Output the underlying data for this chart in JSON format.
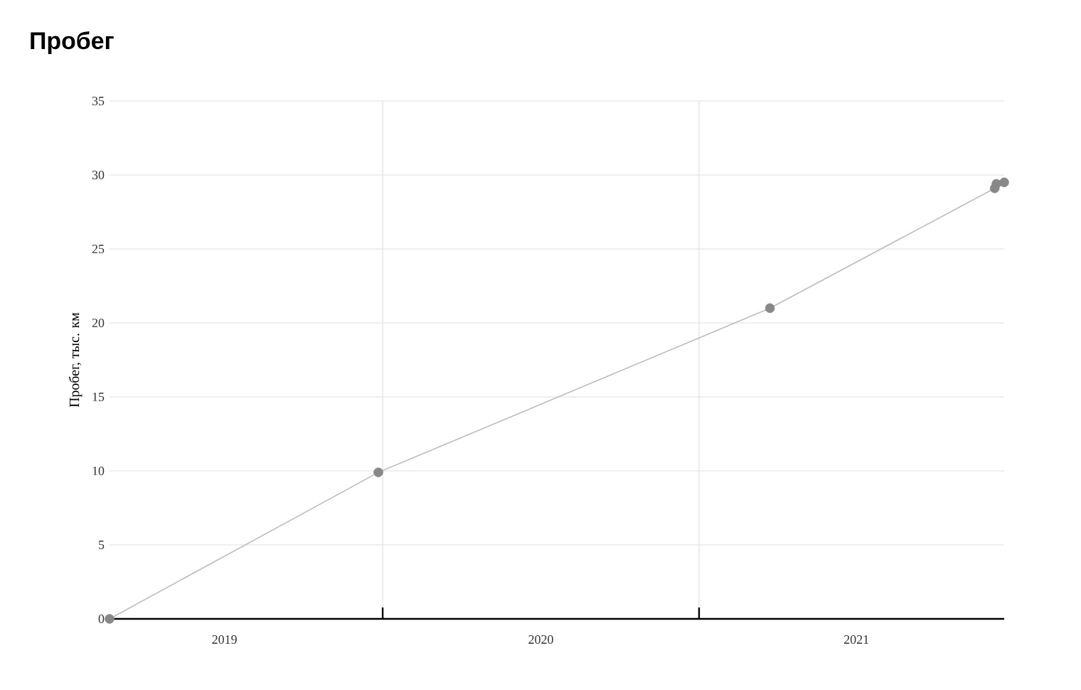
{
  "chart_data": {
    "type": "line",
    "title": "Пробег",
    "ylabel": "Пробег, тыс. км",
    "x": [
      "2019-02-19",
      "2019-12-27",
      "2021-03-24",
      "2021-12-09",
      "2021-12-11",
      "2021-12-20"
    ],
    "series": [
      {
        "color": "#888888",
        "values": [
          0,
          9.9,
          21.0,
          29.1,
          29.4,
          29.5
        ]
      }
    ],
    "xlim": [
      "2019-02-19",
      "2021-12-20"
    ],
    "xticks": [
      {
        "value": "2019-07-02",
        "label": "2019"
      },
      {
        "value": "2020-01-01",
        "label": null
      },
      {
        "value": "2020-07-02",
        "label": "2020"
      },
      {
        "value": "2021-01-01",
        "label": null
      },
      {
        "value": "2021-07-02",
        "label": "2021"
      }
    ],
    "ylim": [
      0,
      35
    ],
    "yticks": [
      0,
      5,
      10,
      15,
      20,
      25,
      30,
      35
    ],
    "grid": true,
    "marker": "circle",
    "line_style": "solid"
  }
}
